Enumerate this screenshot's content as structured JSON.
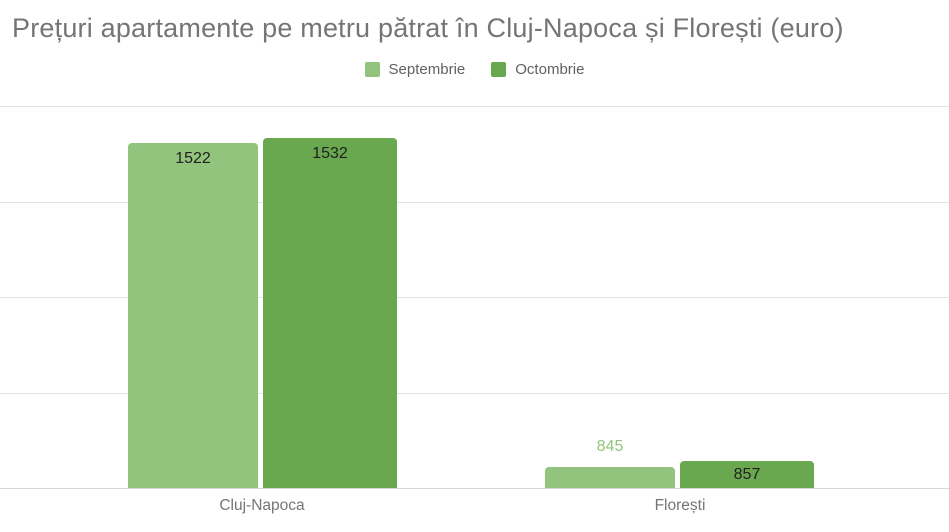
{
  "chart_data": {
    "type": "bar",
    "title": "Prețuri apartamente pe metru pătrat în Cluj-Napoca și Florești (euro)",
    "categories": [
      "Cluj-Napoca",
      "Florești"
    ],
    "series": [
      {
        "name": "Septembrie",
        "color": "#93c47d",
        "values": [
          1522,
          845
        ],
        "label_inside": [
          true,
          false
        ]
      },
      {
        "name": "Octombrie",
        "color": "#6aa84f",
        "values": [
          1532,
          857
        ],
        "label_inside": [
          true,
          true
        ]
      }
    ],
    "ylim": [
      800,
      1600
    ],
    "gridline_step": 200,
    "grid": true,
    "y_tick_labels_visible": false,
    "legend_position": "top",
    "value_labels": true,
    "value_label_outside_color_follows_series": true
  },
  "colors": {
    "background": "#ffffff",
    "title_text": "#757575",
    "legend_text": "#616161",
    "axis_text": "#757575",
    "gridline": "#e3e3e3",
    "value_label_inside": "#212121"
  }
}
